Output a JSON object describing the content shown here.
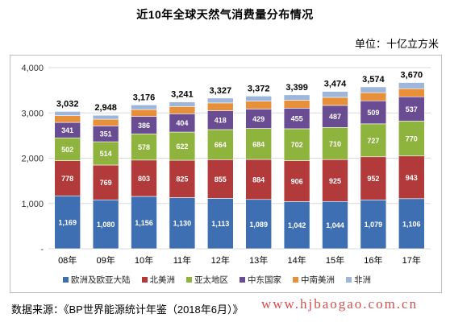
{
  "title": "近10年全球天然气消费量分布情况",
  "unit": "单位：十亿立方米",
  "source": "数据来源：《BP世界能源统计年鉴（2018年6月）》",
  "watermark": "www.hjbaogao.com.cn",
  "chart_data": {
    "type": "bar",
    "stacked": true,
    "categories": [
      "08年",
      "09年",
      "10年",
      "11年",
      "12年",
      "13年",
      "14年",
      "15年",
      "16年",
      "17年"
    ],
    "ylim": [
      0,
      4000
    ],
    "yticks": [
      "-",
      "1,000",
      "2,000",
      "3,000",
      "4,000"
    ],
    "totals": [
      "3,032",
      "2,948",
      "3,176",
      "3,241",
      "3,327",
      "3,372",
      "3,399",
      "3,474",
      "3,574",
      "3,670"
    ],
    "series": [
      {
        "name": "欧洲及欧亚大陆",
        "color": "#3f6fb3",
        "values": [
          1169,
          1080,
          1156,
          1130,
          1113,
          1089,
          1042,
          1044,
          1079,
          1106
        ],
        "labels": [
          "1,169",
          "1,080",
          "1,156",
          "1,130",
          "1,113",
          "1,089",
          "1,042",
          "1,044",
          "1,079",
          "1,106"
        ]
      },
      {
        "name": "北美洲",
        "color": "#b23a3a",
        "values": [
          778,
          769,
          803,
          825,
          855,
          884,
          906,
          925,
          952,
          943
        ],
        "labels": [
          "778",
          "769",
          "803",
          "825",
          "855",
          "884",
          "906",
          "925",
          "952",
          "943"
        ]
      },
      {
        "name": "亚太地区",
        "color": "#8fb43e",
        "values": [
          502,
          514,
          578,
          622,
          664,
          684,
          702,
          710,
          727,
          770
        ],
        "labels": [
          "502",
          "514",
          "578",
          "622",
          "664",
          "684",
          "702",
          "710",
          "727",
          "770"
        ]
      },
      {
        "name": "中东国家",
        "color": "#6a4c93",
        "values": [
          341,
          351,
          386,
          404,
          418,
          429,
          455,
          487,
          509,
          537
        ],
        "labels": [
          "341",
          "351",
          "386",
          "404",
          "418",
          "429",
          "455",
          "487",
          "509",
          "537"
        ]
      },
      {
        "name": "中南美洲",
        "color": "#e88f3a",
        "values": [
          150,
          147,
          153,
          160,
          170,
          175,
          175,
          178,
          180,
          180
        ],
        "labels": []
      },
      {
        "name": "非洲",
        "color": "#9cb6dc",
        "values": [
          92,
          87,
          100,
          100,
          107,
          111,
          119,
          130,
          127,
          134
        ],
        "labels": []
      }
    ]
  }
}
